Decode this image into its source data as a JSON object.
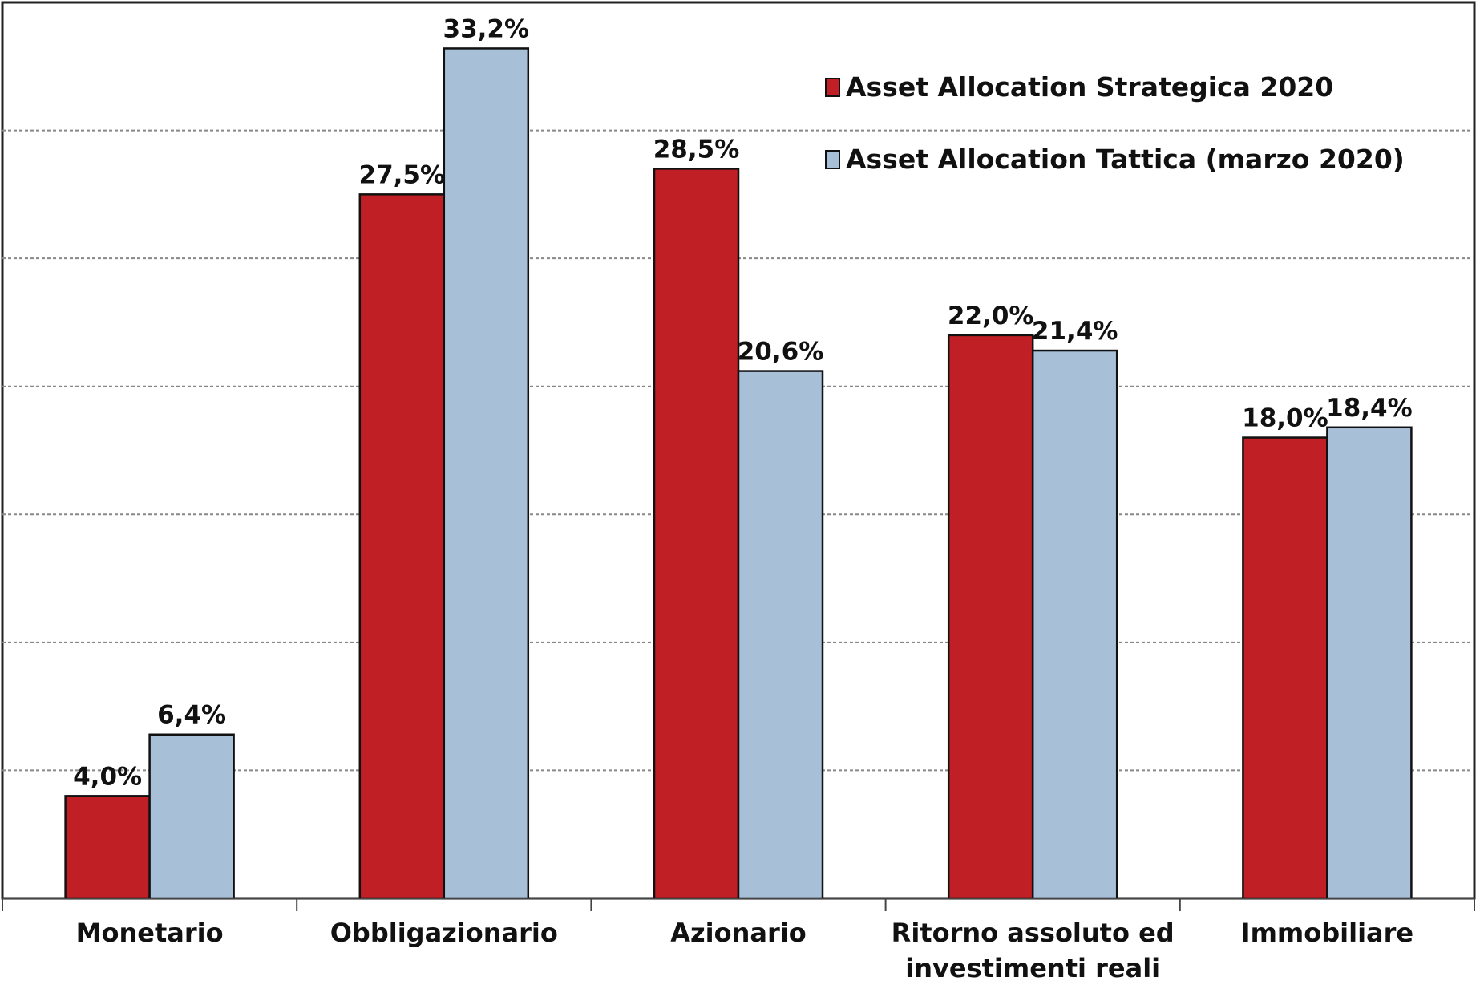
{
  "chart_data": {
    "type": "bar",
    "title": "",
    "xlabel": "",
    "ylabel": "",
    "categories": [
      [
        "Monetario"
      ],
      [
        "Obbligazionario"
      ],
      [
        "Azionario"
      ],
      [
        "Ritorno assoluto ed",
        "investimenti reali"
      ],
      [
        "Immobiliare"
      ]
    ],
    "series": [
      {
        "name": "Asset Allocation Strategica 2020",
        "color": "#c01f26",
        "values": [
          4.0,
          27.5,
          28.5,
          22.0,
          18.0
        ],
        "labels": [
          "4,0%",
          "27,5%",
          "28,5%",
          "22,0%",
          "18,0%"
        ]
      },
      {
        "name": "Asset Allocation Tattica (marzo 2020)",
        "color": "#a8bfd8",
        "values": [
          6.4,
          33.2,
          20.6,
          21.4,
          18.4
        ],
        "labels": [
          "6,4%",
          "33,2%",
          "20,6%",
          "21,4%",
          "18,4%"
        ]
      }
    ],
    "ylim": [
      0,
      35
    ],
    "gridlines": [
      5,
      10,
      15,
      20,
      25,
      30
    ],
    "grid": "dashed horizontal",
    "legend_position": "top-right"
  }
}
